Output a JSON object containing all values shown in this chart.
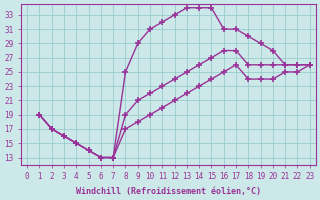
{
  "xlabel": "Windchill (Refroidissement éolien,°C)",
  "bg_color": "#cce8e8",
  "grid_color": "#99cccc",
  "line_color": "#993399",
  "marker": "+",
  "markersize": 5,
  "markeredgewidth": 1.2,
  "linewidth": 1.0,
  "xlim": [
    -0.5,
    23.5
  ],
  "ylim": [
    12.0,
    34.5
  ],
  "xticks": [
    0,
    1,
    2,
    3,
    4,
    5,
    6,
    7,
    8,
    9,
    10,
    11,
    12,
    13,
    14,
    15,
    16,
    17,
    18,
    19,
    20,
    21,
    22,
    23
  ],
  "yticks": [
    13,
    15,
    17,
    19,
    21,
    23,
    25,
    27,
    29,
    31,
    33
  ],
  "line1_x": [
    1,
    2,
    3,
    4,
    5,
    6,
    7,
    8,
    9,
    10,
    11,
    12,
    13,
    14,
    15,
    16,
    17,
    18,
    19,
    20,
    21,
    22,
    23
  ],
  "line1_y": [
    19,
    17,
    16,
    15,
    14,
    13,
    13,
    25,
    29,
    31,
    32,
    33,
    34,
    34,
    34,
    31,
    31,
    30,
    29,
    28,
    26,
    26,
    26
  ],
  "line2_x": [
    1,
    2,
    3,
    4,
    5,
    6,
    7,
    8,
    9,
    10,
    11,
    12,
    13,
    14,
    15,
    16,
    17,
    18,
    19,
    20,
    21,
    22,
    23
  ],
  "line2_y": [
    19,
    17,
    16,
    15,
    14,
    13,
    13,
    19,
    21,
    22,
    23,
    24,
    25,
    26,
    27,
    28,
    28,
    26,
    26,
    26,
    26,
    26,
    26
  ],
  "line3_x": [
    1,
    2,
    3,
    4,
    5,
    6,
    7,
    8,
    9,
    10,
    11,
    12,
    13,
    14,
    15,
    16,
    17,
    18,
    19,
    20,
    21,
    22,
    23
  ],
  "line3_y": [
    19,
    17,
    16,
    15,
    14,
    13,
    13,
    17,
    18,
    19,
    20,
    21,
    22,
    23,
    24,
    25,
    26,
    24,
    24,
    24,
    25,
    25,
    26
  ],
  "tick_fontsize": 5.5,
  "xlabel_fontsize": 6.0
}
